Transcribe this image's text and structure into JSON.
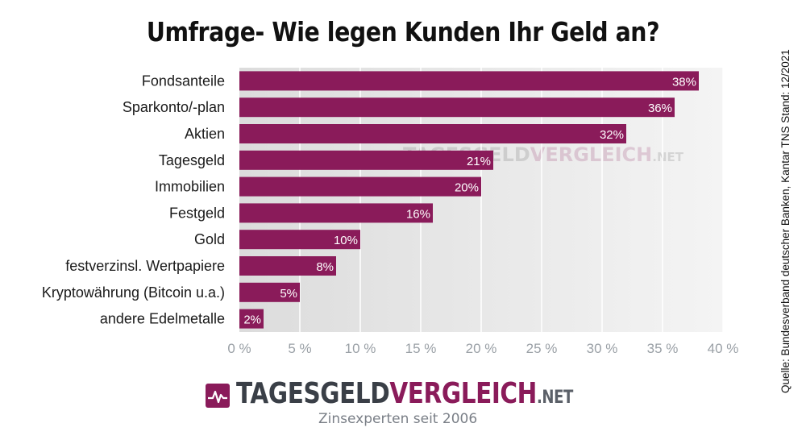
{
  "title": "Umfrage- Wie legen Kunden Ihr Geld an?",
  "source": "Quelle: Bundesverband deutscher Banken, Kantar TNS Stand: 12/2021",
  "colors": {
    "bar": "#8a1b5a",
    "grid": "#ffffff",
    "axis": "#9aa0a6"
  },
  "logo": {
    "part1": "TAGESGELD",
    "part2": "VERGLEICH",
    "part3": ".NET",
    "tagline": "Zinsexperten seit 2006",
    "icon": "chart-pulse-icon"
  },
  "watermark": {
    "part1": "TAGESGELD",
    "part2": "VERGLEICH",
    "part3": ".NET"
  },
  "chart_data": {
    "type": "bar",
    "orientation": "horizontal",
    "categories": [
      "Fondsanteile",
      "Sparkonto/-plan",
      "Aktien",
      "Tagesgeld",
      "Immobilien",
      "Festgeld",
      "Gold",
      "festverzinsl. Wertpapiere",
      "Kryptowährung (Bitcoin u.a.)",
      "andere Edelmetalle"
    ],
    "values": [
      38,
      36,
      32,
      21,
      20,
      16,
      10,
      8,
      5,
      2
    ],
    "value_labels": [
      "38%",
      "36%",
      "32%",
      "21%",
      "20%",
      "16%",
      "10%",
      "8%",
      "5%",
      "2%"
    ],
    "xlim": [
      0,
      40
    ],
    "xticks": [
      0,
      5,
      10,
      15,
      20,
      25,
      30,
      35,
      40
    ],
    "xtick_labels": [
      "0 %",
      "5 %",
      "10 %",
      "15 %",
      "20 %",
      "25 %",
      "30 %",
      "35 %",
      "40 %"
    ],
    "grid": true,
    "legend": "none"
  }
}
